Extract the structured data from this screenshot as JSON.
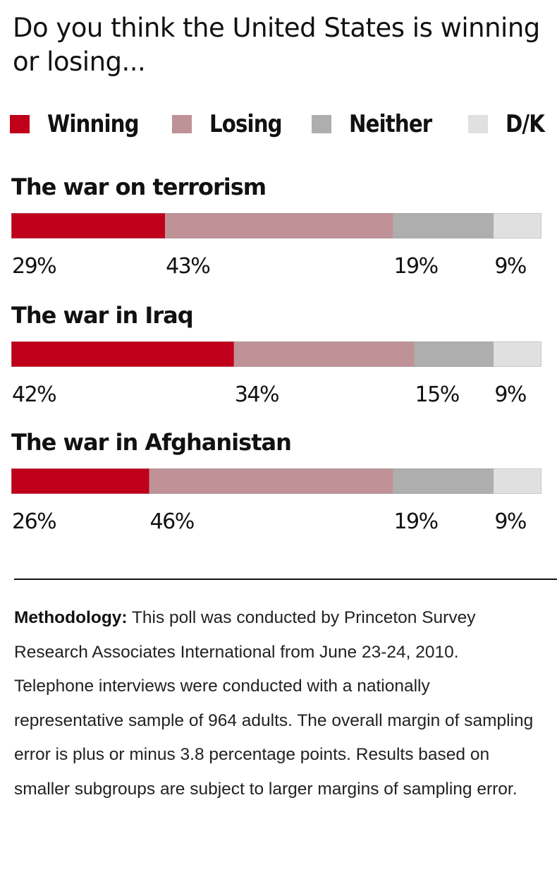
{
  "title": "Do you think the United States is winning or losing...",
  "legend": [
    {
      "label": "Winning",
      "color": "#c0001a"
    },
    {
      "label": "Losing",
      "color": "#bf9297"
    },
    {
      "label": "Neither",
      "color": "#aeaeae"
    },
    {
      "label": "D/K",
      "color": "#e0e0e0"
    }
  ],
  "chart_data": {
    "type": "bar",
    "orientation": "horizontal",
    "stacked": true,
    "normalized": true,
    "title": "Do you think the United States is winning or losing...",
    "categories": [
      "The war on terrorism",
      "The war in Iraq",
      "The war in Afghanistan"
    ],
    "series": [
      {
        "name": "Winning",
        "color": "#c0001a",
        "values": [
          29,
          42,
          26
        ]
      },
      {
        "name": "Losing",
        "color": "#bf9297",
        "values": [
          43,
          34,
          46
        ]
      },
      {
        "name": "Neither",
        "color": "#aeaeae",
        "values": [
          19,
          15,
          19
        ]
      },
      {
        "name": "D/K",
        "color": "#e0e0e0",
        "values": [
          9,
          9,
          9
        ]
      }
    ],
    "value_suffix": "%",
    "xlabel": "",
    "ylabel": "",
    "grid": false,
    "legend_position": "top"
  },
  "methodology": {
    "label": "Methodology:",
    "text": " This poll was conducted by Princeton Survey Research Associates International from June 23-24, 2010. Telephone interviews were conducted with a nationally representative sample of 964 adults. The overall margin of sampling error is plus or minus 3.8 percentage points. Results based on smaller subgroups are subject to larger margins of sampling error."
  }
}
